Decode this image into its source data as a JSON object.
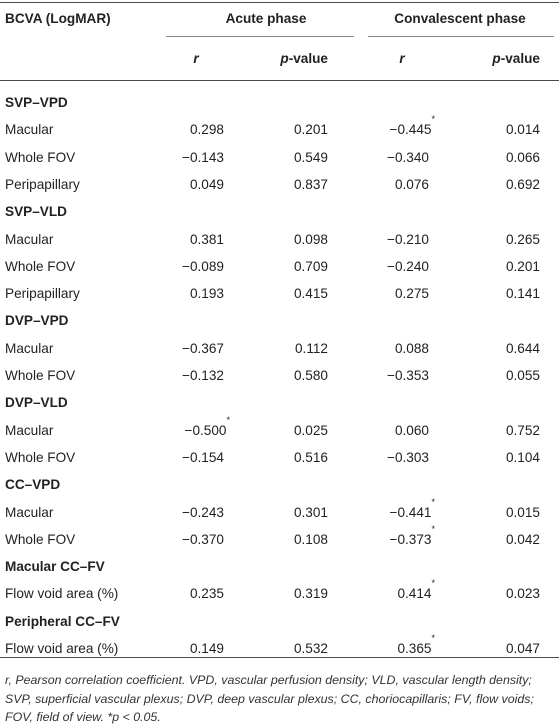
{
  "header": {
    "measure": "BCVA (LogMAR)",
    "phase_acute": "Acute phase",
    "phase_convalescent": "Convalescent phase",
    "col_r": "r",
    "col_p_prefix": "p",
    "col_p_suffix": "-value"
  },
  "sections": [
    {
      "title": "SVP–VPD",
      "rows": [
        {
          "label": "Macular",
          "acute_r": "0.298",
          "acute_p": "0.201",
          "conv_r": "−0.445",
          "conv_r_sig": "*",
          "conv_p": "0.014"
        },
        {
          "label": "Whole FOV",
          "acute_r": "−0.143",
          "acute_p": "0.549",
          "conv_r": "−0.340",
          "conv_p": "0.066"
        },
        {
          "label": "Peripapillary",
          "acute_r": "0.049",
          "acute_p": "0.837",
          "conv_r": "0.076",
          "conv_p": "0.692"
        }
      ]
    },
    {
      "title": "SVP–VLD",
      "rows": [
        {
          "label": "Macular",
          "acute_r": "0.381",
          "acute_p": "0.098",
          "conv_r": "−0.210",
          "conv_p": "0.265"
        },
        {
          "label": "Whole FOV",
          "acute_r": "−0.089",
          "acute_p": "0.709",
          "conv_r": "−0.240",
          "conv_p": "0.201"
        },
        {
          "label": "Peripapillary",
          "acute_r": "0.193",
          "acute_p": "0.415",
          "conv_r": "0.275",
          "conv_p": "0.141"
        }
      ]
    },
    {
      "title": "DVP–VPD",
      "rows": [
        {
          "label": "Macular",
          "acute_r": "−0.367",
          "acute_p": "0.112",
          "conv_r": "0.088",
          "conv_p": "0.644"
        },
        {
          "label": "Whole FOV",
          "acute_r": "−0.132",
          "acute_p": "0.580",
          "conv_r": "−0.353",
          "conv_p": "0.055"
        }
      ]
    },
    {
      "title": "DVP–VLD",
      "rows": [
        {
          "label": "Macular",
          "acute_r": "−0.500",
          "acute_r_sig": "*",
          "acute_p": "0.025",
          "conv_r": "0.060",
          "conv_p": "0.752"
        },
        {
          "label": "Whole FOV",
          "acute_r": "−0.154",
          "acute_p": "0.516",
          "conv_r": "−0.303",
          "conv_p": "0.104"
        }
      ]
    },
    {
      "title": "CC–VPD",
      "rows": [
        {
          "label": "Macular",
          "acute_r": "−0.243",
          "acute_p": "0.301",
          "conv_r": "−0.441",
          "conv_r_sig": "*",
          "conv_p": "0.015"
        },
        {
          "label": "Whole FOV",
          "acute_r": "−0.370",
          "acute_p": "0.108",
          "conv_r": "−0.373",
          "conv_r_sig": "*",
          "conv_p": "0.042"
        }
      ]
    },
    {
      "title": "Macular CC–FV",
      "rows": [
        {
          "label": "Flow void area (%)",
          "acute_r": "0.235",
          "acute_p": "0.319",
          "conv_r": "0.414",
          "conv_r_sig": "*",
          "conv_p": "0.023"
        }
      ]
    },
    {
      "title": "Peripheral CC–FV",
      "rows": [
        {
          "label": "Flow void area (%)",
          "acute_r": "0.149",
          "acute_p": "0.532",
          "conv_r": "0.365",
          "conv_r_sig": "*",
          "conv_p": "0.047"
        }
      ]
    }
  ],
  "footnote": {
    "text": "r, Pearson correlation coefficient. VPD, vascular perfusion density; VLD, vascular length density; SVP, superficial vascular plexus; DVP, deep vascular plexus; CC, choriocapillaris; FV, flow voids; FOV, field of view. *p < 0.05."
  }
}
